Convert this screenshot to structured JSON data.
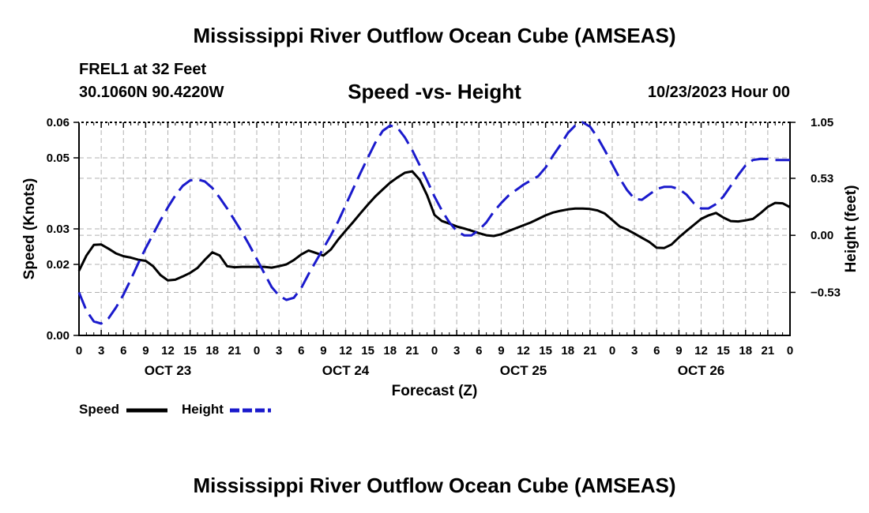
{
  "page": {
    "title": "Mississippi River Outflow Ocean Cube (AMSEAS)",
    "title_bottom": "Mississippi River Outflow Ocean Cube (AMSEAS)",
    "station": "FREL1 at 32 Feet",
    "coords": "30.1060N  90.4220W",
    "subtitle": "Speed -vs- Height",
    "datetime": "10/23/2023 Hour 00"
  },
  "legend": {
    "speed_label": "Speed",
    "height_label": "Height"
  },
  "colors": {
    "speed": "#000000",
    "height": "#1a1acc",
    "grid": "#b0b0b0"
  },
  "chart_data": {
    "type": "line",
    "title": "Speed -vs- Height",
    "xlabel": "Forecast (Z)",
    "ylabel": "Speed (Knots)",
    "y2label": "Height (feet)",
    "grid": true,
    "xlim": [
      0,
      96
    ],
    "ylim": [
      0,
      0.06
    ],
    "y2lim": [
      -0.93,
      1.05
    ],
    "x_ticks": [
      0,
      3,
      6,
      9,
      12,
      15,
      18,
      21,
      24,
      27,
      30,
      33,
      36,
      39,
      42,
      45,
      48,
      51,
      54,
      57,
      60,
      63,
      66,
      69,
      72,
      75,
      78,
      81,
      84,
      87,
      90,
      93,
      96
    ],
    "x_tick_labels": [
      "0",
      "3",
      "6",
      "9",
      "12",
      "15",
      "18",
      "21",
      "0",
      "3",
      "6",
      "9",
      "12",
      "15",
      "18",
      "21",
      "0",
      "3",
      "6",
      "9",
      "12",
      "15",
      "18",
      "21",
      "0",
      "3",
      "6",
      "9",
      "12",
      "15",
      "18",
      "21",
      "0"
    ],
    "day_labels": [
      {
        "x": 12,
        "label": "OCT 23"
      },
      {
        "x": 36,
        "label": "OCT 24"
      },
      {
        "x": 60,
        "label": "OCT 25"
      },
      {
        "x": 84,
        "label": "OCT 26"
      }
    ],
    "y_ticks": [
      0,
      0.02,
      0.03,
      0.05,
      0.06
    ],
    "y_tick_labels": [
      "0.00",
      "0.02",
      "0.03",
      "0.05",
      "0.06"
    ],
    "y2_ticks": [
      1.05,
      0.53,
      0.0,
      -0.53
    ],
    "y2_tick_labels": [
      "1.05",
      "0.53",
      "0.00",
      "−0.53"
    ],
    "series": [
      {
        "name": "Speed",
        "axis": "left",
        "style": "solid",
        "x": [
          0,
          1,
          2,
          3,
          4,
          5,
          6,
          7,
          8,
          9,
          10,
          11,
          12,
          13,
          14,
          15,
          16,
          17,
          18,
          19,
          20,
          21,
          22,
          23,
          24,
          25,
          26,
          27,
          28,
          29,
          30,
          31,
          32,
          33,
          34,
          35,
          36,
          37,
          38,
          39,
          40,
          41,
          42,
          43,
          44,
          45,
          46,
          47,
          48,
          49,
          50,
          51,
          52,
          53,
          54,
          55,
          56,
          57,
          58,
          59,
          60,
          61,
          62,
          63,
          64,
          65,
          66,
          67,
          68,
          69,
          70,
          71,
          72,
          73,
          74,
          75,
          76,
          77,
          78,
          79,
          80,
          81,
          82,
          83,
          84,
          85,
          86,
          87,
          88,
          89,
          90,
          91,
          92,
          93,
          94,
          95,
          96
        ],
        "values": [
          0.0182,
          0.0225,
          0.0255,
          0.0256,
          0.0244,
          0.0231,
          0.0223,
          0.0219,
          0.0213,
          0.021,
          0.0195,
          0.017,
          0.0155,
          0.0157,
          0.0166,
          0.0176,
          0.019,
          0.0213,
          0.0234,
          0.0225,
          0.0195,
          0.0192,
          0.0193,
          0.0193,
          0.0193,
          0.0193,
          0.0191,
          0.0195,
          0.02,
          0.0212,
          0.0228,
          0.0239,
          0.0232,
          0.0225,
          0.0242,
          0.027,
          0.0295,
          0.0319,
          0.0344,
          0.0368,
          0.0391,
          0.0411,
          0.043,
          0.0445,
          0.0458,
          0.0462,
          0.0438,
          0.0395,
          0.0339,
          0.0322,
          0.0315,
          0.0307,
          0.0301,
          0.0295,
          0.0288,
          0.0282,
          0.028,
          0.0285,
          0.0294,
          0.0302,
          0.031,
          0.0318,
          0.0328,
          0.0338,
          0.0346,
          0.0351,
          0.0355,
          0.0357,
          0.0357,
          0.0356,
          0.0352,
          0.0343,
          0.0325,
          0.0307,
          0.0298,
          0.0287,
          0.0275,
          0.0263,
          0.0247,
          0.0246,
          0.0256,
          0.0276,
          0.0294,
          0.0311,
          0.0328,
          0.0338,
          0.0345,
          0.0332,
          0.0322,
          0.0321,
          0.0324,
          0.0328,
          0.0344,
          0.0362,
          0.0373,
          0.0372,
          0.0361
        ]
      },
      {
        "name": "Height",
        "axis": "right",
        "style": "dashed",
        "x": [
          0,
          1,
          2,
          3,
          4,
          5,
          6,
          7,
          8,
          9,
          10,
          11,
          12,
          13,
          14,
          15,
          16,
          17,
          18,
          19,
          20,
          21,
          22,
          23,
          24,
          25,
          26,
          27,
          28,
          29,
          30,
          31,
          32,
          33,
          34,
          35,
          36,
          37,
          38,
          39,
          40,
          41,
          42,
          43,
          44,
          45,
          46,
          47,
          48,
          49,
          50,
          51,
          52,
          53,
          54,
          55,
          56,
          57,
          58,
          59,
          60,
          61,
          62,
          63,
          64,
          65,
          66,
          67,
          68,
          69,
          70,
          71,
          72,
          73,
          74,
          75,
          76,
          77,
          78,
          79,
          80,
          81,
          82,
          83,
          84,
          85,
          86,
          87,
          88,
          89,
          90,
          91,
          92,
          93,
          94,
          95,
          96
        ],
        "values": [
          -0.53,
          -0.7,
          -0.8,
          -0.82,
          -0.77,
          -0.67,
          -0.55,
          -0.41,
          -0.26,
          -0.12,
          0.01,
          0.14,
          0.26,
          0.37,
          0.46,
          0.51,
          0.52,
          0.5,
          0.44,
          0.35,
          0.25,
          0.14,
          0.03,
          -0.09,
          -0.22,
          -0.35,
          -0.48,
          -0.56,
          -0.6,
          -0.58,
          -0.49,
          -0.36,
          -0.24,
          -0.12,
          0.0,
          0.13,
          0.28,
          0.43,
          0.58,
          0.72,
          0.86,
          0.97,
          1.02,
          1.0,
          0.91,
          0.79,
          0.65,
          0.51,
          0.36,
          0.23,
          0.12,
          0.04,
          0.0,
          0.0,
          0.05,
          0.12,
          0.22,
          0.3,
          0.37,
          0.42,
          0.47,
          0.51,
          0.55,
          0.63,
          0.74,
          0.84,
          0.95,
          1.02,
          1.05,
          1.01,
          0.91,
          0.79,
          0.66,
          0.53,
          0.42,
          0.34,
          0.33,
          0.38,
          0.43,
          0.45,
          0.45,
          0.43,
          0.38,
          0.3,
          0.25,
          0.25,
          0.29,
          0.36,
          0.46,
          0.56,
          0.65,
          0.7,
          0.71,
          0.71,
          0.7,
          0.7,
          0.7
        ]
      }
    ]
  }
}
